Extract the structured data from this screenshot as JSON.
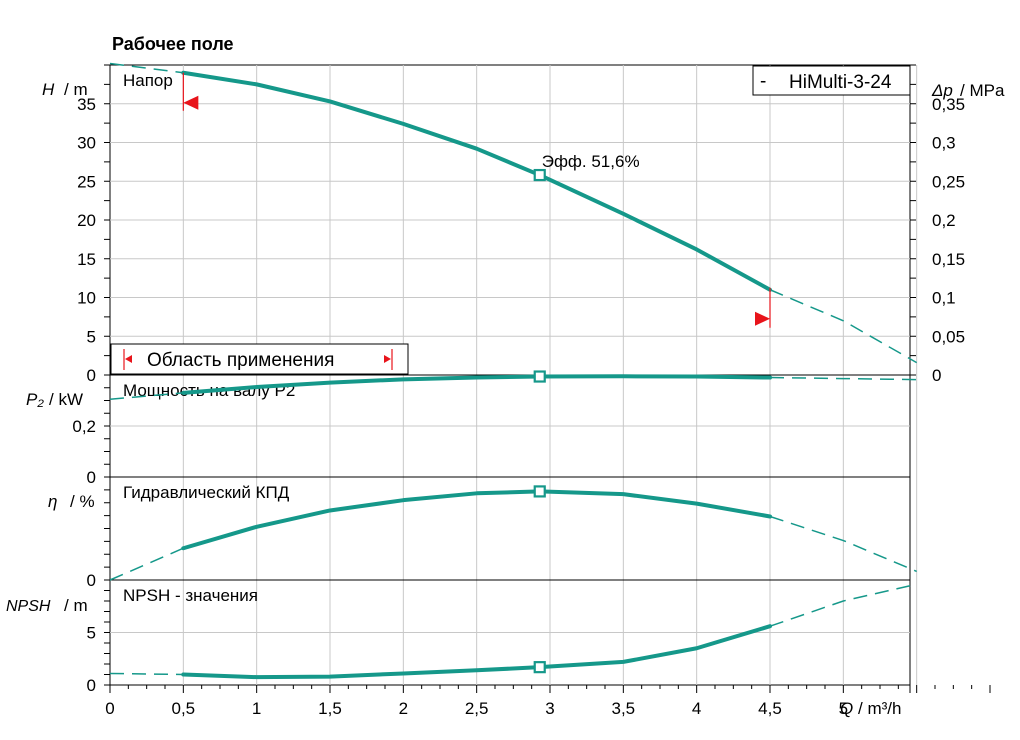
{
  "chart_data": {
    "title": "Рабочее поле",
    "legend": {
      "marker": "-",
      "label": "HiMulti-3-24",
      "placement": "top-right"
    },
    "x_axis": {
      "label": "Q / m³/h",
      "ticks": [
        {
          "v": 0,
          "label": "0"
        },
        {
          "v": 0.5,
          "label": "0,5"
        },
        {
          "v": 1,
          "label": "1"
        },
        {
          "v": 1.5,
          "label": "1,5"
        },
        {
          "v": 2,
          "label": "2"
        },
        {
          "v": 2.5,
          "label": "2,5"
        },
        {
          "v": 3,
          "label": "3"
        },
        {
          "v": 3.5,
          "label": "3,5"
        },
        {
          "v": 4,
          "label": "4"
        },
        {
          "v": 4.5,
          "label": "4,5"
        },
        {
          "v": 5,
          "label": "5"
        },
        {
          "v": 5.5,
          "label": ""
        },
        {
          "v": 6,
          "label": ""
        }
      ],
      "range": [
        0,
        6
      ]
    },
    "panels": [
      {
        "name": "head",
        "title": "Напор",
        "ylabel_sym": "H",
        "ylabel_unit": "/ m",
        "right_label_sym": "Δp",
        "right_label_unit": "/ MPa",
        "range": [
          0,
          40
        ],
        "ticks": [
          {
            "v": 0,
            "label": "0"
          },
          {
            "v": 5,
            "label": "5"
          },
          {
            "v": 10,
            "label": "10"
          },
          {
            "v": 15,
            "label": "15"
          },
          {
            "v": 20,
            "label": "20"
          },
          {
            "v": 25,
            "label": "25"
          },
          {
            "v": 30,
            "label": "30"
          },
          {
            "v": 35,
            "label": "35"
          }
        ],
        "right_ticks": [
          {
            "v": 0,
            "label": "0"
          },
          {
            "v": 5,
            "label": "0,05"
          },
          {
            "v": 10,
            "label": "0,1"
          },
          {
            "v": 15,
            "label": "0,15"
          },
          {
            "v": 20,
            "label": "0,2"
          },
          {
            "v": 25,
            "label": "0,25"
          },
          {
            "v": 30,
            "label": "0,3"
          },
          {
            "v": 35,
            "label": "0,35"
          }
        ],
        "curve_solid": [
          [
            0.5,
            39.0
          ],
          [
            1.0,
            37.5
          ],
          [
            1.5,
            35.3
          ],
          [
            2.0,
            32.4
          ],
          [
            2.5,
            29.2
          ],
          [
            2.93,
            25.8
          ],
          [
            3.5,
            20.8
          ],
          [
            4.0,
            16.2
          ],
          [
            4.5,
            11.0
          ]
        ],
        "curve_dashed_left": [
          [
            0,
            40.2
          ],
          [
            0.5,
            39.0
          ]
        ],
        "curve_dashed_right": [
          [
            4.5,
            11.0
          ],
          [
            5.0,
            7.0
          ],
          [
            5.5,
            1.6
          ]
        ],
        "duty_point": {
          "x": 2.93,
          "y": 25.8
        },
        "annotation": "Эфф.  51,6%",
        "range_label": "Область применения",
        "range_markers": {
          "left": 0.5,
          "right": 4.5
        }
      },
      {
        "name": "power",
        "title": "Мощность на валу P2",
        "ylabel_sym": "P₂",
        "ylabel_unit": "/ kW",
        "range": [
          0,
          0.4
        ],
        "ticks": [
          {
            "v": 0,
            "label": "0"
          },
          {
            "v": 0.2,
            "label": "0,2"
          }
        ],
        "curve_solid": [
          [
            0.5,
            0.33
          ],
          [
            1.0,
            0.353
          ],
          [
            1.5,
            0.37
          ],
          [
            2.0,
            0.383
          ],
          [
            2.5,
            0.39
          ],
          [
            2.93,
            0.394
          ],
          [
            3.5,
            0.395
          ],
          [
            4.0,
            0.394
          ],
          [
            4.5,
            0.39
          ]
        ],
        "curve_dashed_left": [
          [
            0,
            0.305
          ],
          [
            0.5,
            0.33
          ]
        ],
        "curve_dashed_right": [
          [
            4.5,
            0.39
          ],
          [
            5.0,
            0.386
          ],
          [
            5.5,
            0.382
          ]
        ],
        "duty_point": {
          "x": 2.93,
          "y": 0.394
        }
      },
      {
        "name": "efficiency",
        "title": "Гидравлический КПД",
        "ylabel_sym": "η",
        "ylabel_unit": "/ %",
        "range": [
          0,
          60
        ],
        "ticks": [
          {
            "v": 0,
            "label": "0"
          }
        ],
        "curve_solid": [
          [
            0.5,
            18.5
          ],
          [
            1.0,
            31.0
          ],
          [
            1.5,
            40.5
          ],
          [
            2.0,
            46.5
          ],
          [
            2.5,
            50.5
          ],
          [
            2.93,
            51.6
          ],
          [
            3.5,
            50.0
          ],
          [
            4.0,
            44.5
          ],
          [
            4.5,
            37.0
          ]
        ],
        "curve_dashed_left": [
          [
            0,
            0
          ],
          [
            0.5,
            18.5
          ]
        ],
        "curve_dashed_right": [
          [
            4.5,
            37.0
          ],
          [
            5.0,
            23.0
          ],
          [
            5.5,
            5.0
          ]
        ],
        "duty_point": {
          "x": 2.93,
          "y": 51.6
        }
      },
      {
        "name": "npsh",
        "title": "NPSH - значения",
        "ylabel_sym": "NPSH",
        "ylabel_unit": "/ m",
        "range": [
          0,
          10
        ],
        "ticks": [
          {
            "v": 0,
            "label": "0"
          },
          {
            "v": 5,
            "label": "5"
          }
        ],
        "curve_solid": [
          [
            0.5,
            1.0
          ],
          [
            1.0,
            0.75
          ],
          [
            1.5,
            0.8
          ],
          [
            2.0,
            1.1
          ],
          [
            2.5,
            1.4
          ],
          [
            2.93,
            1.7
          ],
          [
            3.5,
            2.2
          ],
          [
            4.0,
            3.5
          ],
          [
            4.5,
            5.6
          ]
        ],
        "curve_dashed_left": [
          [
            0,
            1.1
          ],
          [
            0.5,
            1.0
          ]
        ],
        "curve_dashed_right": [
          [
            4.5,
            5.6
          ],
          [
            5.0,
            8.0
          ],
          [
            5.5,
            9.6
          ]
        ],
        "duty_point": {
          "x": 2.93,
          "y": 1.7
        }
      }
    ]
  },
  "colors": {
    "curve": "#15988a",
    "marker_red": "#e8141b",
    "axis": "#000000"
  }
}
